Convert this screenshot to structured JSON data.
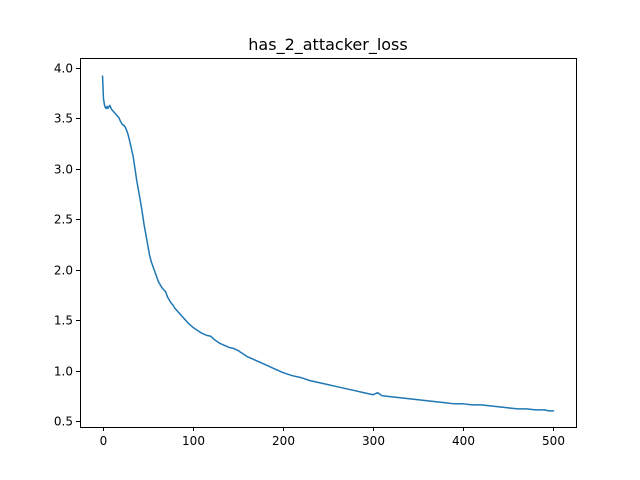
{
  "chart_data": {
    "type": "line",
    "title": "has_2_attacker_loss",
    "xlabel": "",
    "ylabel": "",
    "xlim": [
      -25,
      525
    ],
    "ylim": [
      0.44,
      4.1
    ],
    "grid": false,
    "legend": "none",
    "line_color": "#1f77b4",
    "x_ticks": [
      0,
      100,
      200,
      300,
      400,
      500
    ],
    "x_tick_labels": [
      "0",
      "100",
      "200",
      "300",
      "400",
      "500"
    ],
    "y_ticks": [
      0.5,
      1.0,
      1.5,
      2.0,
      2.5,
      3.0,
      3.5,
      4.0
    ],
    "y_tick_labels": [
      "0.5",
      "1.0",
      "1.5",
      "2.0",
      "2.5",
      "3.0",
      "3.5",
      "4.0"
    ],
    "series": [
      {
        "x": [
          0,
          1,
          2,
          3,
          4,
          5,
          6,
          8,
          10,
          12,
          14,
          16,
          18,
          20,
          22,
          24,
          26,
          28,
          30,
          32,
          34,
          36,
          38,
          40,
          42,
          44,
          46,
          48,
          50,
          52,
          54,
          56,
          58,
          60,
          62,
          64,
          66,
          68,
          70,
          72,
          74,
          76,
          78,
          80,
          85,
          90,
          95,
          100,
          105,
          110,
          115,
          120,
          125,
          130,
          135,
          140,
          145,
          150,
          155,
          160,
          165,
          170,
          175,
          180,
          190,
          200,
          210,
          220,
          230,
          240,
          250,
          260,
          270,
          280,
          290,
          300,
          305,
          310,
          320,
          330,
          340,
          350,
          360,
          370,
          380,
          390,
          400,
          410,
          420,
          430,
          440,
          450,
          460,
          470,
          480,
          490,
          495,
          500
        ],
        "y": [
          3.92,
          3.7,
          3.64,
          3.61,
          3.6,
          3.62,
          3.6,
          3.63,
          3.59,
          3.57,
          3.55,
          3.53,
          3.51,
          3.47,
          3.44,
          3.43,
          3.4,
          3.35,
          3.28,
          3.2,
          3.12,
          3.0,
          2.88,
          2.78,
          2.68,
          2.57,
          2.45,
          2.35,
          2.25,
          2.15,
          2.08,
          2.03,
          1.98,
          1.93,
          1.88,
          1.85,
          1.82,
          1.8,
          1.78,
          1.73,
          1.7,
          1.67,
          1.65,
          1.62,
          1.57,
          1.52,
          1.47,
          1.43,
          1.4,
          1.37,
          1.35,
          1.34,
          1.3,
          1.27,
          1.25,
          1.23,
          1.22,
          1.2,
          1.17,
          1.14,
          1.12,
          1.1,
          1.08,
          1.06,
          1.02,
          0.98,
          0.95,
          0.93,
          0.9,
          0.88,
          0.86,
          0.84,
          0.82,
          0.8,
          0.78,
          0.76,
          0.78,
          0.75,
          0.74,
          0.73,
          0.72,
          0.71,
          0.7,
          0.69,
          0.68,
          0.67,
          0.67,
          0.66,
          0.66,
          0.65,
          0.64,
          0.63,
          0.62,
          0.62,
          0.61,
          0.61,
          0.6,
          0.6
        ]
      }
    ]
  }
}
